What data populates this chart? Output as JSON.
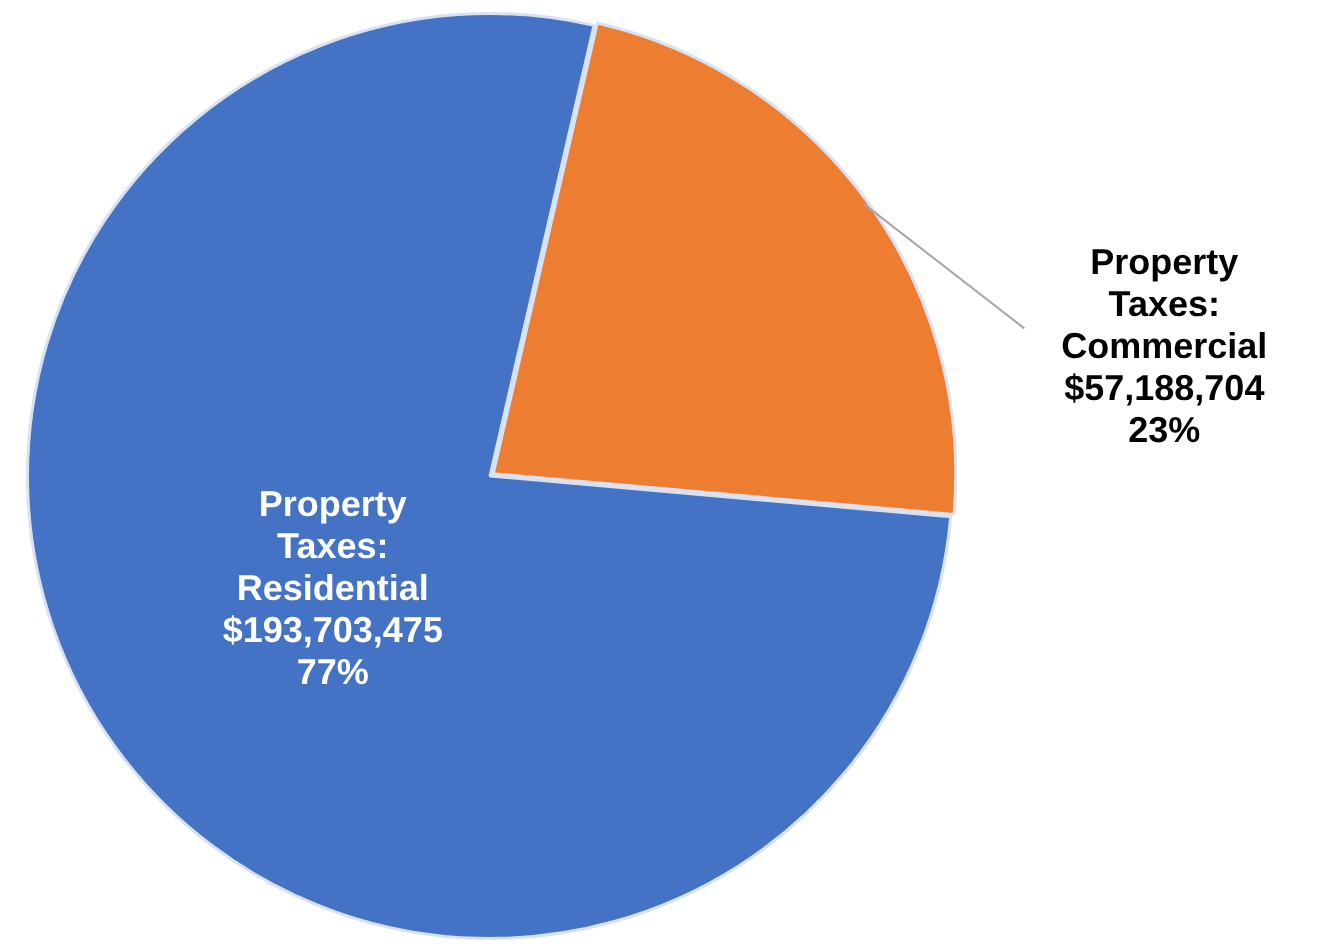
{
  "chart_data": {
    "type": "pie",
    "categories": [
      "Property Taxes: Residential",
      "Property Taxes: Commercial"
    ],
    "values": [
      193703475,
      57188704
    ],
    "colors": [
      "#4472c4",
      "#ed7d31"
    ],
    "value_labels": [
      "$193,703,475\n77%",
      "$57,188,704\n23%"
    ],
    "legend": false
  }
}
